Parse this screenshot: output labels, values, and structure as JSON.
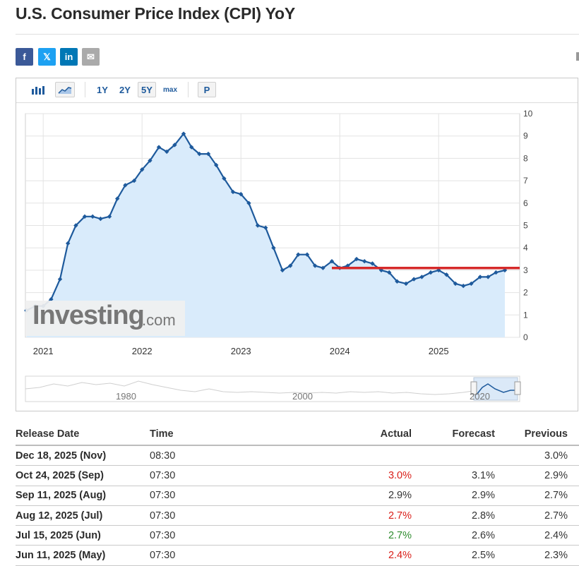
{
  "page": {
    "title": "U.S. Consumer Price Index (CPI) YoY"
  },
  "share": {
    "facebook": "f",
    "x": "𝕏",
    "linkedin": "in",
    "mail": "✉"
  },
  "toolbar": {
    "r1": "1Y",
    "r2": "2Y",
    "r3": "5Y",
    "rmax": "max",
    "p": "P"
  },
  "watermark": {
    "brand": "Investing",
    "suffix": ".com"
  },
  "navigator": {
    "labels": [
      "1980",
      "2000",
      "2020"
    ]
  },
  "chart_data": {
    "type": "area",
    "y_ticks": [
      "0",
      "1",
      "2",
      "3",
      "4",
      "5",
      "6",
      "7",
      "8",
      "9",
      "10"
    ],
    "ylim": [
      0,
      10
    ],
    "x_ticks": [
      {
        "label": "2021",
        "x": 2021.0
      },
      {
        "label": "2022",
        "x": 2022.0
      },
      {
        "label": "2023",
        "x": 2023.0
      },
      {
        "label": "2024",
        "x": 2024.0
      },
      {
        "label": "2025",
        "x": 2025.0
      }
    ],
    "x_start": 2020.82,
    "x_end": 2025.82,
    "grid": true,
    "fill_color": "#d9ebfb",
    "line_color": "#1e5a9c",
    "reference_line": {
      "value": 3.1,
      "from": 2023.92,
      "to": 2025.82,
      "color": "#d62a2a"
    },
    "series": [
      {
        "values": [
          [
            2020.83,
            1.2
          ],
          [
            2020.92,
            1.4
          ],
          [
            2021.0,
            1.4
          ],
          [
            2021.08,
            1.7
          ],
          [
            2021.17,
            2.6
          ],
          [
            2021.25,
            4.2
          ],
          [
            2021.33,
            5.0
          ],
          [
            2021.42,
            5.4
          ],
          [
            2021.5,
            5.4
          ],
          [
            2021.58,
            5.3
          ],
          [
            2021.67,
            5.4
          ],
          [
            2021.75,
            6.2
          ],
          [
            2021.83,
            6.8
          ],
          [
            2021.92,
            7.0
          ],
          [
            2022.0,
            7.5
          ],
          [
            2022.08,
            7.9
          ],
          [
            2022.17,
            8.5
          ],
          [
            2022.25,
            8.3
          ],
          [
            2022.33,
            8.6
          ],
          [
            2022.42,
            9.1
          ],
          [
            2022.5,
            8.5
          ],
          [
            2022.58,
            8.2
          ],
          [
            2022.67,
            8.2
          ],
          [
            2022.75,
            7.7
          ],
          [
            2022.83,
            7.1
          ],
          [
            2022.92,
            6.5
          ],
          [
            2023.0,
            6.4
          ],
          [
            2023.08,
            6.0
          ],
          [
            2023.17,
            5.0
          ],
          [
            2023.25,
            4.9
          ],
          [
            2023.33,
            4.0
          ],
          [
            2023.42,
            3.0
          ],
          [
            2023.5,
            3.2
          ],
          [
            2023.58,
            3.7
          ],
          [
            2023.67,
            3.7
          ],
          [
            2023.75,
            3.2
          ],
          [
            2023.83,
            3.1
          ],
          [
            2023.92,
            3.4
          ],
          [
            2024.0,
            3.1
          ],
          [
            2024.08,
            3.2
          ],
          [
            2024.17,
            3.5
          ],
          [
            2024.25,
            3.4
          ],
          [
            2024.33,
            3.3
          ],
          [
            2024.42,
            3.0
          ],
          [
            2024.5,
            2.9
          ],
          [
            2024.58,
            2.5
          ],
          [
            2024.67,
            2.4
          ],
          [
            2024.75,
            2.6
          ],
          [
            2024.83,
            2.7
          ],
          [
            2024.92,
            2.9
          ],
          [
            2025.0,
            3.0
          ],
          [
            2025.08,
            2.8
          ],
          [
            2025.17,
            2.4
          ],
          [
            2025.25,
            2.3
          ],
          [
            2025.33,
            2.4
          ],
          [
            2025.42,
            2.7
          ],
          [
            2025.5,
            2.7
          ],
          [
            2025.58,
            2.9
          ],
          [
            2025.67,
            3.0
          ]
        ]
      }
    ]
  },
  "table": {
    "headers": {
      "date": "Release Date",
      "time": "Time",
      "actual": "Actual",
      "forecast": "Forecast",
      "previous": "Previous"
    },
    "rows": [
      {
        "date": "Dec 18, 2025 (Nov)",
        "time": "08:30",
        "actual": "",
        "forecast": "",
        "previous": "3.0%",
        "color": ""
      },
      {
        "date": "Oct 24, 2025 (Sep)",
        "time": "07:30",
        "actual": "3.0%",
        "forecast": "3.1%",
        "previous": "2.9%",
        "color": "red"
      },
      {
        "date": "Sep 11, 2025 (Aug)",
        "time": "07:30",
        "actual": "2.9%",
        "forecast": "2.9%",
        "previous": "2.7%",
        "color": ""
      },
      {
        "date": "Aug 12, 2025 (Jul)",
        "time": "07:30",
        "actual": "2.7%",
        "forecast": "2.8%",
        "previous": "2.7%",
        "color": "red"
      },
      {
        "date": "Jul 15, 2025 (Jun)",
        "time": "07:30",
        "actual": "2.7%",
        "forecast": "2.6%",
        "previous": "2.4%",
        "color": "green"
      },
      {
        "date": "Jun 11, 2025 (May)",
        "time": "07:30",
        "actual": "2.4%",
        "forecast": "2.5%",
        "previous": "2.3%",
        "color": "red"
      }
    ]
  }
}
